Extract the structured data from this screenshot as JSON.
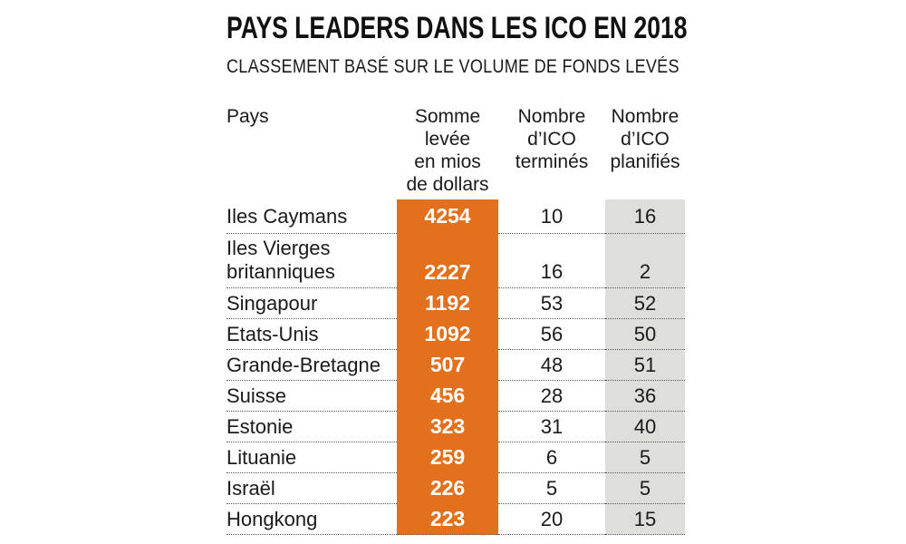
{
  "title": "PAYS LEADERS DANS LES ICO EN 2018",
  "subtitle": "CLASSEMENT BASÉ SUR LE VOLUME DE FONDS LEVÉS",
  "colors": {
    "accent_orange": "#e2701d",
    "column_gray": "#dededa",
    "text_black": "#1a1a1a",
    "divider_gray": "#5a5a5a"
  },
  "table": {
    "headers": {
      "pays": "Pays",
      "somme_lines": [
        "Somme",
        "levée",
        "en mios",
        "de dollars"
      ],
      "termines_lines": [
        "Nombre",
        "d’ICO",
        "terminés"
      ],
      "planifies_lines": [
        "Nombre",
        "d’ICO",
        "planifiés"
      ]
    },
    "rows": [
      {
        "pays": "Iles Caymans",
        "somme": "4254",
        "termines": "10",
        "planifies": "16"
      },
      {
        "pays": "Iles Vierges britanniques",
        "somme": "2227",
        "termines": "16",
        "planifies": "2"
      },
      {
        "pays": "Singapour",
        "somme": "1192",
        "termines": "53",
        "planifies": "52"
      },
      {
        "pays": "Etats-Unis",
        "somme": "1092",
        "termines": "56",
        "planifies": "50"
      },
      {
        "pays": "Grande-Bretagne",
        "somme": "507",
        "termines": "48",
        "planifies": "51"
      },
      {
        "pays": "Suisse",
        "somme": "456",
        "termines": "28",
        "planifies": "36"
      },
      {
        "pays": "Estonie",
        "somme": "323",
        "termines": "31",
        "planifies": "40"
      },
      {
        "pays": "Lituanie",
        "somme": "259",
        "termines": "6",
        "planifies": "5"
      },
      {
        "pays": "Israël",
        "somme": "226",
        "termines": "5",
        "planifies": "5"
      },
      {
        "pays": "Hongkong",
        "somme": "223",
        "termines": "20",
        "planifies": "15"
      }
    ]
  },
  "chart_data": {
    "type": "table",
    "title": "PAYS LEADERS DANS LES ICO EN 2018",
    "subtitle": "CLASSEMENT BASÉ SUR LE VOLUME DE FONDS LEVÉS",
    "columns": [
      "Pays",
      "Somme levée en mios de dollars",
      "Nombre d’ICO terminés",
      "Nombre d’ICO planifiés"
    ],
    "rows": [
      [
        "Iles Caymans",
        4254,
        10,
        16
      ],
      [
        "Iles Vierges britanniques",
        2227,
        16,
        2
      ],
      [
        "Singapour",
        1192,
        53,
        52
      ],
      [
        "Etats-Unis",
        1092,
        56,
        50
      ],
      [
        "Grande-Bretagne",
        507,
        48,
        51
      ],
      [
        "Suisse",
        456,
        28,
        36
      ],
      [
        "Estonie",
        323,
        31,
        40
      ],
      [
        "Lituanie",
        259,
        6,
        5
      ],
      [
        "Israël",
        226,
        5,
        5
      ],
      [
        "Hongkong",
        223,
        20,
        15
      ]
    ],
    "highlight": "Somme column drawn as solid orange bar, planifiés column shaded light gray"
  }
}
